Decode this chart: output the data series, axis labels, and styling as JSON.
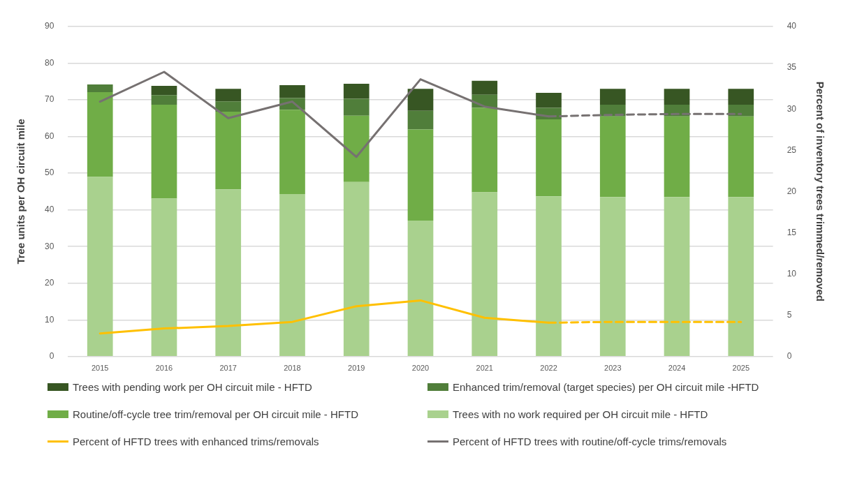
{
  "chart_data": {
    "type": "bar",
    "stacked": true,
    "categories": [
      "2015",
      "2016",
      "2017",
      "2018",
      "2019",
      "2020",
      "2021",
      "2022",
      "2023",
      "2024",
      "2025"
    ],
    "ylabel": "Tree units per OH circuit mile",
    "y2label": "Percent of inventory trees trimmed/removed",
    "ylim": [
      0,
      90
    ],
    "yticks": [
      0,
      10,
      20,
      30,
      40,
      50,
      60,
      70,
      80,
      90
    ],
    "y2lim": [
      0,
      40
    ],
    "y2ticks": [
      0,
      5,
      10,
      15,
      20,
      25,
      30,
      35,
      40
    ],
    "grid": "y",
    "legend": "bottom",
    "marker": "none",
    "series": [
      {
        "name": "Trees with no work required per OH circuit mile - HFTD",
        "color": "#a9d18e",
        "values": [
          49.0,
          43.1,
          45.6,
          44.3,
          47.6,
          37.1,
          44.8,
          43.7,
          43.5,
          43.5,
          43.5
        ]
      },
      {
        "name": "Routine/off-cycle tree trim/removal per OH circuit mile - HFTD",
        "color": "#70ad47",
        "values": [
          23.1,
          25.6,
          21.2,
          23.0,
          18.1,
          24.8,
          23.0,
          21.0,
          22.0,
          22.0,
          22.0
        ]
      },
      {
        "name": "Enhanced trim/removal (target species) per OH circuit mile -HFTD",
        "color": "#507e3a",
        "values": [
          2.1,
          2.6,
          2.8,
          3.2,
          4.6,
          5.1,
          3.6,
          3.1,
          3.2,
          3.2,
          3.2
        ]
      },
      {
        "name": "Trees with pending work per OH circuit mile - HFTD",
        "color": "#375623",
        "values": [
          0,
          2.5,
          3.4,
          3.5,
          4.1,
          6.0,
          3.8,
          4.1,
          4.3,
          4.3,
          4.3
        ]
      },
      {
        "name": "Percent of HFTD trees with enhanced trims/removals",
        "type": "line",
        "axis": "y2",
        "line_style": "solid",
        "color": "#ffc000",
        "values": [
          2.8,
          3.4,
          3.7,
          4.2,
          6.1,
          6.8,
          4.7,
          4.1,
          null,
          null,
          null
        ]
      },
      {
        "name": "Percent of HFTD trees with routine/off-cycle trims/removals",
        "type": "line",
        "axis": "y2",
        "line_style": "solid",
        "color": "#767171",
        "values": [
          30.9,
          34.5,
          28.9,
          30.9,
          24.2,
          33.6,
          30.3,
          29.1,
          null,
          null,
          null
        ]
      },
      {
        "type": "line",
        "axis": "y2",
        "line_style": "dashed",
        "color": "#ffc000",
        "values": [
          null,
          null,
          null,
          null,
          null,
          null,
          null,
          4.1,
          4.2,
          4.2,
          4.2
        ]
      },
      {
        "type": "line",
        "axis": "y2",
        "line_style": "dashed",
        "color": "#767171",
        "values": [
          null,
          null,
          null,
          null,
          null,
          null,
          null,
          29.1,
          29.3,
          29.4,
          29.4
        ]
      }
    ]
  }
}
